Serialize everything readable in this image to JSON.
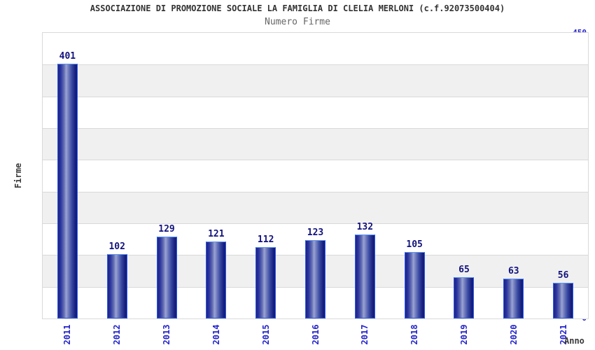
{
  "header": {
    "title": "ASSOCIAZIONE DI PROMOZIONE SOCIALE LA FAMIGLIA DI CLELIA MERLONI (c.f.92073500404)",
    "subtitle": "Numero Firme"
  },
  "chart_data": {
    "type": "bar",
    "title": "ASSOCIAZIONE DI PROMOZIONE SOCIALE LA FAMIGLIA DI CLELIA MERLONI (c.f.92073500404)",
    "subtitle": "Numero Firme",
    "categories": [
      "2011",
      "2012",
      "2013",
      "2014",
      "2015",
      "2016",
      "2017",
      "2018",
      "2019",
      "2020",
      "2021"
    ],
    "values": [
      401,
      102,
      129,
      121,
      112,
      123,
      132,
      105,
      65,
      63,
      56
    ],
    "xlabel": "Anno",
    "ylabel": "Firme",
    "ylim": [
      0,
      450
    ],
    "y_ticks": [
      0,
      50,
      100,
      150,
      200,
      250,
      300,
      350,
      400,
      450
    ],
    "grid": "horizontal gridlines every 50 with alternating white and gray bands",
    "legend_position": "none",
    "colors": {
      "bar_gradient_dark": "#1b2287",
      "bar_gradient_light": "#9ba4d4",
      "bar_outline": "#2e5be8",
      "bar_outline_top": "#5b93f5",
      "axis_tick_label": "#2222cc",
      "value_label": "#12127e",
      "band_gray": "#f0f0f0",
      "gridline": "#d9d9d9",
      "title_color": "#333333",
      "subtitle_color": "#666666",
      "axis_title_color": "#3a3a3a"
    }
  }
}
